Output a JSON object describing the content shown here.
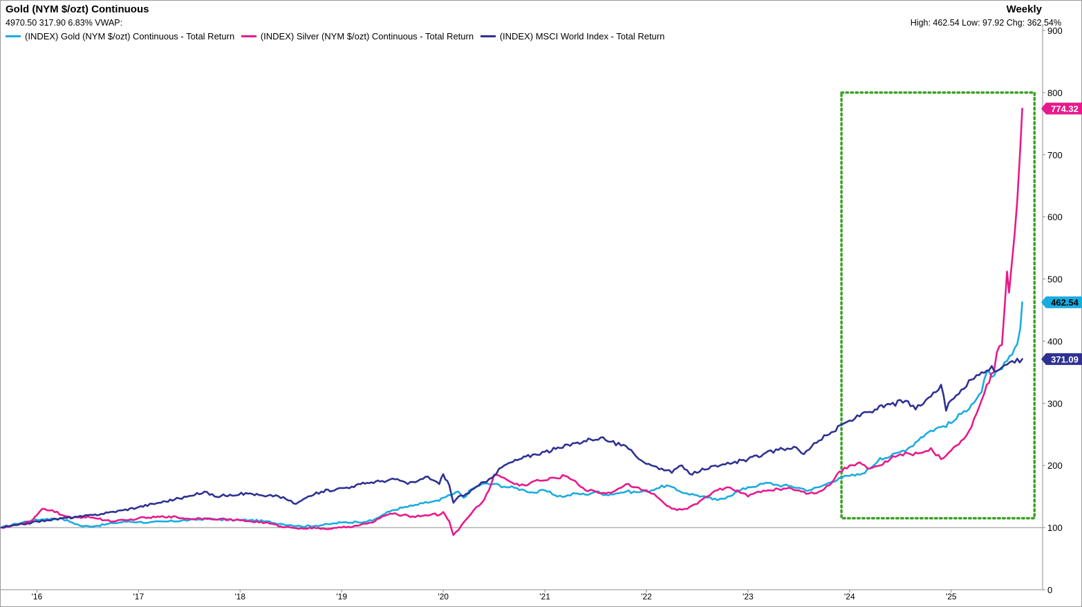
{
  "header": {
    "title": "Gold (NYM $/ozt) Continuous",
    "period": "Weekly",
    "stats": "4970.50 317.90 6.83%  VWAP:",
    "hlc": "High: 462.54 Low: 97.92 Chg: 362.54%"
  },
  "colors": {
    "gold": "#19ace0",
    "silver": "#e8198b",
    "msci": "#2e3192",
    "highlight_box": "#3aa124",
    "baseline": "#8c8c8c"
  },
  "chart_data": {
    "type": "line",
    "x_tick_labels": [
      "'16",
      "'17",
      "'18",
      "'19",
      "'20",
      "'21",
      "'22",
      "'23",
      "'24",
      "'25"
    ],
    "y_ticks": [
      0,
      100,
      200,
      300,
      400,
      500,
      600,
      700,
      800,
      900
    ],
    "ylim": [
      0,
      900
    ],
    "xlim": [
      2015.65,
      2025.9
    ],
    "baseline_value": 100,
    "highlight_range": {
      "x": [
        2023.92,
        2025.82
      ],
      "y": [
        115,
        800
      ]
    },
    "grid": false,
    "legend_position": "top-left",
    "series": [
      {
        "name": "(INDEX) Gold (NYM $/ozt) Continuous - Total Return",
        "last_value": "462.54",
        "color": "#19ace0",
        "points": [
          [
            2015.65,
            100
          ],
          [
            2015.8,
            106
          ],
          [
            2015.95,
            112
          ],
          [
            2016.1,
            114
          ],
          [
            2016.25,
            114
          ],
          [
            2016.35,
            108
          ],
          [
            2016.45,
            102
          ],
          [
            2016.6,
            103
          ],
          [
            2016.75,
            107
          ],
          [
            2016.9,
            110
          ],
          [
            2017.0,
            109
          ],
          [
            2017.1,
            108
          ],
          [
            2017.3,
            110
          ],
          [
            2017.5,
            112
          ],
          [
            2017.65,
            114
          ],
          [
            2017.8,
            113
          ],
          [
            2017.95,
            112
          ],
          [
            2018.1,
            112
          ],
          [
            2018.25,
            110
          ],
          [
            2018.4,
            106
          ],
          [
            2018.5,
            104
          ],
          [
            2018.6,
            102
          ],
          [
            2018.75,
            103
          ],
          [
            2018.9,
            106
          ],
          [
            2019.0,
            108
          ],
          [
            2019.15,
            109
          ],
          [
            2019.3,
            111
          ],
          [
            2019.4,
            120
          ],
          [
            2019.5,
            128
          ],
          [
            2019.6,
            132
          ],
          [
            2019.7,
            135
          ],
          [
            2019.8,
            139
          ],
          [
            2019.9,
            142
          ],
          [
            2019.96,
            143
          ],
          [
            2020.0,
            148
          ],
          [
            2020.08,
            152
          ],
          [
            2020.15,
            158
          ],
          [
            2020.2,
            148
          ],
          [
            2020.28,
            162
          ],
          [
            2020.38,
            170
          ],
          [
            2020.5,
            170
          ],
          [
            2020.6,
            166
          ],
          [
            2020.7,
            164
          ],
          [
            2020.8,
            160
          ],
          [
            2020.9,
            156
          ],
          [
            2021.0,
            160
          ],
          [
            2021.1,
            152
          ],
          [
            2021.2,
            150
          ],
          [
            2021.3,
            155
          ],
          [
            2021.4,
            153
          ],
          [
            2021.5,
            158
          ],
          [
            2021.6,
            153
          ],
          [
            2021.7,
            155
          ],
          [
            2021.8,
            158
          ],
          [
            2021.9,
            157
          ],
          [
            2022.0,
            158
          ],
          [
            2022.1,
            163
          ],
          [
            2022.2,
            168
          ],
          [
            2022.3,
            160
          ],
          [
            2022.4,
            155
          ],
          [
            2022.5,
            152
          ],
          [
            2022.6,
            148
          ],
          [
            2022.7,
            144
          ],
          [
            2022.8,
            150
          ],
          [
            2022.9,
            158
          ],
          [
            2023.0,
            165
          ],
          [
            2023.1,
            168
          ],
          [
            2023.2,
            172
          ],
          [
            2023.3,
            168
          ],
          [
            2023.4,
            167
          ],
          [
            2023.5,
            164
          ],
          [
            2023.6,
            160
          ],
          [
            2023.7,
            165
          ],
          [
            2023.8,
            172
          ],
          [
            2023.9,
            180
          ],
          [
            2024.0,
            183
          ],
          [
            2024.1,
            185
          ],
          [
            2024.2,
            195
          ],
          [
            2024.3,
            212
          ],
          [
            2024.4,
            214
          ],
          [
            2024.5,
            222
          ],
          [
            2024.6,
            230
          ],
          [
            2024.7,
            245
          ],
          [
            2024.8,
            256
          ],
          [
            2024.9,
            262
          ],
          [
            2025.0,
            268
          ],
          [
            2025.1,
            283
          ],
          [
            2025.2,
            298
          ],
          [
            2025.3,
            318
          ],
          [
            2025.35,
            350
          ],
          [
            2025.42,
            344
          ],
          [
            2025.5,
            355
          ],
          [
            2025.55,
            368
          ],
          [
            2025.6,
            378
          ],
          [
            2025.65,
            395
          ],
          [
            2025.68,
            420
          ],
          [
            2025.7,
            462.54
          ]
        ]
      },
      {
        "name": "(INDEX) Silver (NYM $/ozt) Continuous - Total Return",
        "last_value": "774.32",
        "color": "#e8198b",
        "points": [
          [
            2015.65,
            100
          ],
          [
            2015.8,
            104
          ],
          [
            2015.95,
            110
          ],
          [
            2016.0,
            120
          ],
          [
            2016.05,
            130
          ],
          [
            2016.15,
            128
          ],
          [
            2016.25,
            120
          ],
          [
            2016.35,
            115
          ],
          [
            2016.5,
            118
          ],
          [
            2016.6,
            114
          ],
          [
            2016.75,
            110
          ],
          [
            2016.9,
            112
          ],
          [
            2017.0,
            115
          ],
          [
            2017.1,
            116
          ],
          [
            2017.3,
            118
          ],
          [
            2017.5,
            114
          ],
          [
            2017.65,
            115
          ],
          [
            2017.8,
            114
          ],
          [
            2017.95,
            112
          ],
          [
            2018.1,
            110
          ],
          [
            2018.25,
            108
          ],
          [
            2018.4,
            102
          ],
          [
            2018.5,
            100
          ],
          [
            2018.6,
            99
          ],
          [
            2018.75,
            99
          ],
          [
            2018.9,
            98
          ],
          [
            2019.0,
            100
          ],
          [
            2019.15,
            103
          ],
          [
            2019.3,
            108
          ],
          [
            2019.4,
            118
          ],
          [
            2019.5,
            122
          ],
          [
            2019.6,
            120
          ],
          [
            2019.7,
            118
          ],
          [
            2019.8,
            119
          ],
          [
            2019.9,
            122
          ],
          [
            2019.96,
            120
          ],
          [
            2020.0,
            125
          ],
          [
            2020.06,
            110
          ],
          [
            2020.1,
            88
          ],
          [
            2020.15,
            96
          ],
          [
            2020.22,
            112
          ],
          [
            2020.3,
            128
          ],
          [
            2020.38,
            140
          ],
          [
            2020.45,
            160
          ],
          [
            2020.5,
            185
          ],
          [
            2020.6,
            180
          ],
          [
            2020.7,
            170
          ],
          [
            2020.8,
            168
          ],
          [
            2020.9,
            175
          ],
          [
            2021.0,
            176
          ],
          [
            2021.1,
            180
          ],
          [
            2021.2,
            183
          ],
          [
            2021.3,
            175
          ],
          [
            2021.4,
            160
          ],
          [
            2021.5,
            158
          ],
          [
            2021.6,
            155
          ],
          [
            2021.7,
            160
          ],
          [
            2021.8,
            170
          ],
          [
            2021.9,
            165
          ],
          [
            2022.0,
            160
          ],
          [
            2022.1,
            150
          ],
          [
            2022.2,
            135
          ],
          [
            2022.3,
            128
          ],
          [
            2022.4,
            130
          ],
          [
            2022.5,
            138
          ],
          [
            2022.6,
            150
          ],
          [
            2022.7,
            160
          ],
          [
            2022.8,
            165
          ],
          [
            2022.9,
            160
          ],
          [
            2023.0,
            150
          ],
          [
            2023.1,
            158
          ],
          [
            2023.2,
            160
          ],
          [
            2023.3,
            162
          ],
          [
            2023.4,
            164
          ],
          [
            2023.5,
            160
          ],
          [
            2023.6,
            155
          ],
          [
            2023.7,
            158
          ],
          [
            2023.8,
            168
          ],
          [
            2023.9,
            190
          ],
          [
            2024.0,
            200
          ],
          [
            2024.1,
            205
          ],
          [
            2024.2,
            195
          ],
          [
            2024.3,
            200
          ],
          [
            2024.4,
            210
          ],
          [
            2024.5,
            218
          ],
          [
            2024.6,
            218
          ],
          [
            2024.7,
            220
          ],
          [
            2024.8,
            228
          ],
          [
            2024.9,
            210
          ],
          [
            2025.0,
            224
          ],
          [
            2025.1,
            240
          ],
          [
            2025.2,
            262
          ],
          [
            2025.3,
            305
          ],
          [
            2025.35,
            330
          ],
          [
            2025.42,
            350
          ],
          [
            2025.45,
            382
          ],
          [
            2025.5,
            394
          ],
          [
            2025.55,
            512
          ],
          [
            2025.57,
            478
          ],
          [
            2025.6,
            530
          ],
          [
            2025.65,
            625
          ],
          [
            2025.68,
            710
          ],
          [
            2025.7,
            774.32
          ]
        ]
      },
      {
        "name": "(INDEX) MSCI World Index - Total Return",
        "last_value": "371.09",
        "color": "#2e3192",
        "points": [
          [
            2015.65,
            100
          ],
          [
            2015.8,
            104
          ],
          [
            2015.95,
            108
          ],
          [
            2016.1,
            112
          ],
          [
            2016.25,
            115
          ],
          [
            2016.4,
            117
          ],
          [
            2016.55,
            120
          ],
          [
            2016.7,
            124
          ],
          [
            2016.85,
            128
          ],
          [
            2017.0,
            133
          ],
          [
            2017.2,
            140
          ],
          [
            2017.4,
            147
          ],
          [
            2017.55,
            152
          ],
          [
            2017.65,
            158
          ],
          [
            2017.75,
            150
          ],
          [
            2017.9,
            153
          ],
          [
            2018.1,
            155
          ],
          [
            2018.25,
            150
          ],
          [
            2018.35,
            152
          ],
          [
            2018.45,
            146
          ],
          [
            2018.55,
            138
          ],
          [
            2018.65,
            148
          ],
          [
            2018.8,
            158
          ],
          [
            2018.95,
            162
          ],
          [
            2019.1,
            166
          ],
          [
            2019.25,
            172
          ],
          [
            2019.4,
            175
          ],
          [
            2019.55,
            178
          ],
          [
            2019.65,
            170
          ],
          [
            2019.75,
            175
          ],
          [
            2019.85,
            182
          ],
          [
            2019.96,
            170
          ],
          [
            2020.0,
            186
          ],
          [
            2020.06,
            168
          ],
          [
            2020.1,
            140
          ],
          [
            2020.15,
            150
          ],
          [
            2020.25,
            155
          ],
          [
            2020.35,
            168
          ],
          [
            2020.45,
            178
          ],
          [
            2020.6,
            200
          ],
          [
            2020.75,
            210
          ],
          [
            2020.9,
            218
          ],
          [
            2021.0,
            222
          ],
          [
            2021.15,
            228
          ],
          [
            2021.3,
            236
          ],
          [
            2021.45,
            242
          ],
          [
            2021.55,
            245
          ],
          [
            2021.65,
            238
          ],
          [
            2021.75,
            232
          ],
          [
            2021.85,
            225
          ],
          [
            2021.95,
            208
          ],
          [
            2022.05,
            200
          ],
          [
            2022.15,
            195
          ],
          [
            2022.25,
            188
          ],
          [
            2022.35,
            200
          ],
          [
            2022.45,
            185
          ],
          [
            2022.55,
            195
          ],
          [
            2022.7,
            198
          ],
          [
            2022.85,
            204
          ],
          [
            2023.0,
            210
          ],
          [
            2023.15,
            218
          ],
          [
            2023.3,
            225
          ],
          [
            2023.45,
            230
          ],
          [
            2023.55,
            218
          ],
          [
            2023.65,
            236
          ],
          [
            2023.8,
            250
          ],
          [
            2023.95,
            268
          ],
          [
            2024.05,
            275
          ],
          [
            2024.15,
            286
          ],
          [
            2024.25,
            290
          ],
          [
            2024.4,
            298
          ],
          [
            2024.55,
            304
          ],
          [
            2024.65,
            290
          ],
          [
            2024.75,
            305
          ],
          [
            2024.85,
            318
          ],
          [
            2024.9,
            330
          ],
          [
            2024.95,
            288
          ],
          [
            2025.0,
            305
          ],
          [
            2025.1,
            322
          ],
          [
            2025.2,
            338
          ],
          [
            2025.3,
            350
          ],
          [
            2025.4,
            360
          ],
          [
            2025.45,
            352
          ],
          [
            2025.5,
            358
          ],
          [
            2025.6,
            368
          ],
          [
            2025.7,
            371.09
          ]
        ]
      }
    ]
  }
}
